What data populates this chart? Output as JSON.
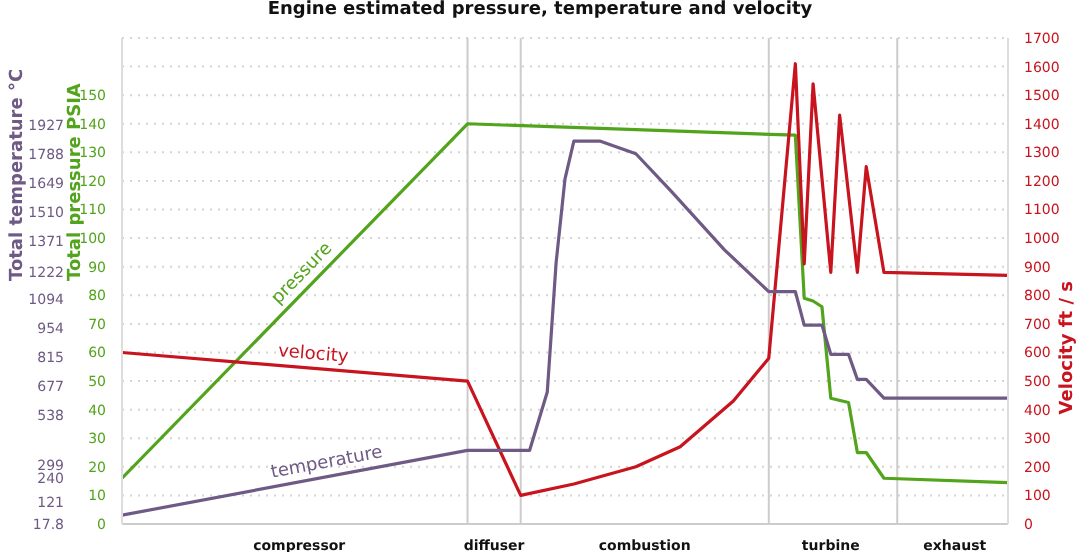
{
  "chart_data": {
    "type": "line",
    "title": "Engine estimated pressure, temperature and velocity",
    "ylabel": "Total pressure PSIA",
    "y2label": "Velocity ft / s",
    "y3label": "Total temperature °C",
    "categories": [
      null,
      null,
      null,
      null,
      null,
      null,
      null,
      null,
      null,
      null,
      null,
      null,
      null,
      null,
      null,
      null,
      null,
      null,
      null,
      null,
      "compressor",
      null,
      null,
      null,
      null,
      null,
      null,
      null,
      null,
      null,
      null,
      null,
      null,
      null,
      null,
      null,
      null,
      null,
      null,
      null,
      null,
      null,
      "diffuser",
      null,
      null,
      null,
      null,
      null,
      null,
      null,
      null,
      null,
      null,
      null,
      null,
      null,
      null,
      null,
      null,
      "combustion",
      null,
      null,
      null,
      null,
      null,
      null,
      null,
      null,
      null,
      null,
      null,
      null,
      null,
      null,
      null,
      null,
      null,
      null,
      null,
      null,
      "turbine",
      null,
      null,
      null,
      null,
      null,
      null,
      null,
      null,
      null,
      null,
      null,
      null,
      null,
      "exhaust",
      null,
      null,
      null,
      null,
      null,
      null
    ],
    "ylim": [
      0,
      170
    ],
    "yticks": [
      0,
      10,
      20,
      30,
      40,
      50,
      60,
      70,
      80,
      90,
      100,
      110,
      120,
      130,
      140,
      150
    ],
    "y2lim": [
      0,
      1700
    ],
    "y2ticks": [
      0,
      100,
      200,
      300,
      400,
      500,
      600,
      700,
      800,
      900,
      1000,
      1100,
      1200,
      1300,
      1400,
      1500,
      1600,
      1700
    ],
    "y3lim": [
      17.8,
      2344
    ],
    "y3ticks": [
      17.8,
      121,
      240,
      299,
      538,
      677,
      815,
      954,
      1094,
      1222,
      1371,
      1510,
      1649,
      1788,
      1927
    ],
    "grid": "y",
    "legend": false,
    "marker": "none",
    "line_style": "solid",
    "series": [
      {
        "name": "pressure",
        "color": "#52a41c",
        "values": [
          16,
          null,
          null,
          null,
          null,
          null,
          null,
          null,
          null,
          null,
          null,
          null,
          null,
          null,
          null,
          null,
          null,
          null,
          null,
          null,
          null,
          null,
          null,
          null,
          null,
          null,
          null,
          null,
          null,
          null,
          null,
          null,
          null,
          null,
          null,
          null,
          null,
          null,
          null,
          140,
          null,
          null,
          null,
          null,
          null,
          null,
          null,
          null,
          null,
          null,
          null,
          null,
          null,
          null,
          null,
          null,
          null,
          null,
          null,
          null,
          null,
          null,
          null,
          null,
          null,
          null,
          null,
          null,
          null,
          null,
          null,
          null,
          null,
          null,
          null,
          null,
          136,
          79,
          78,
          76,
          44,
          null,
          42.5,
          25,
          25,
          null,
          16,
          null,
          null,
          null,
          null,
          null,
          null,
          null,
          null,
          null,
          null,
          null,
          null,
          null,
          14.5
        ]
      },
      {
        "name": "velocity",
        "color": "#c8141e",
        "axis": "y2",
        "values": [
          600,
          null,
          null,
          null,
          null,
          null,
          null,
          null,
          null,
          null,
          null,
          null,
          null,
          null,
          null,
          null,
          null,
          null,
          null,
          null,
          null,
          null,
          null,
          null,
          null,
          null,
          null,
          null,
          null,
          null,
          null,
          null,
          null,
          null,
          null,
          null,
          null,
          null,
          null,
          500,
          null,
          null,
          null,
          null,
          null,
          100,
          null,
          null,
          null,
          null,
          null,
          140,
          null,
          null,
          null,
          null,
          null,
          null,
          200,
          null,
          null,
          null,
          null,
          270,
          null,
          null,
          null,
          null,
          null,
          430,
          null,
          null,
          null,
          580,
          null,
          null,
          1610,
          910,
          1540,
          null,
          880,
          1430,
          null,
          880,
          1250,
          null,
          880,
          null,
          null,
          null,
          null,
          null,
          null,
          null,
          null,
          null,
          null,
          null,
          null,
          null,
          870
        ]
      },
      {
        "name": "temperature",
        "color": "#6e5a84",
        "axis": "y3",
        "values": [
          60,
          null,
          null,
          null,
          null,
          null,
          null,
          null,
          null,
          null,
          null,
          null,
          null,
          null,
          null,
          null,
          null,
          null,
          null,
          null,
          null,
          null,
          null,
          null,
          null,
          null,
          null,
          null,
          null,
          null,
          null,
          null,
          null,
          null,
          null,
          null,
          null,
          null,
          null,
          370,
          null,
          null,
          null,
          null,
          null,
          null,
          370,
          null,
          650,
          1270,
          1670,
          1850,
          null,
          null,
          1850,
          null,
          null,
          null,
          1790,
          null,
          null,
          null,
          1610,
          null,
          null,
          null,
          null,
          null,
          1330,
          null,
          null,
          null,
          null,
          1130,
          null,
          null,
          1130,
          970,
          null,
          970,
          830,
          null,
          830,
          710,
          710,
          null,
          620,
          null,
          null,
          null,
          null,
          null,
          null,
          null,
          null,
          null,
          null,
          null,
          null,
          null,
          620
        ]
      }
    ]
  }
}
